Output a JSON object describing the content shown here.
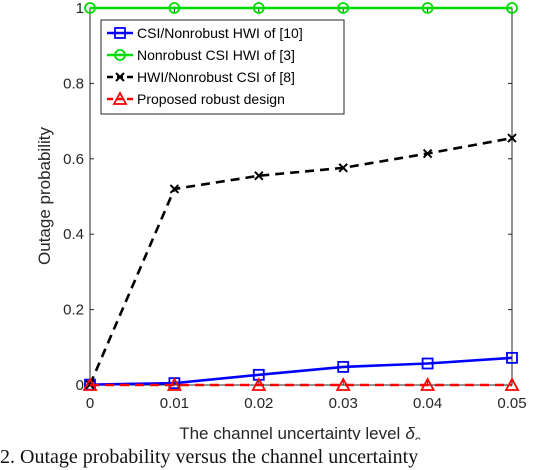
{
  "chart_data": {
    "type": "line",
    "xlabel": "The channel uncertainty level",
    "xlabel_symbol": "δ",
    "xlabel_subscript": "c",
    "ylabel": "Outage probability",
    "x": [
      0,
      0.01,
      0.02,
      0.03,
      0.04,
      0.05
    ],
    "xticks": [
      "0",
      "0.01",
      "0.02",
      "0.03",
      "0.04",
      "0.05"
    ],
    "yticks": [
      "0",
      "0.2",
      "0.4",
      "0.6",
      "0.8",
      "1"
    ],
    "xlim": [
      0,
      0.05
    ],
    "ylim": [
      0,
      1
    ],
    "grid": false,
    "legend_position": "top-left",
    "series": [
      {
        "name": "CSI/Nonrobust HWI of [10]",
        "color": "#0000ff",
        "style": "solid",
        "marker": "square",
        "values": [
          0.001,
          0.005,
          0.027,
          0.048,
          0.057,
          0.072
        ]
      },
      {
        "name": "Nonrobust CSI HWI of [3]",
        "color": "#00dd00",
        "style": "solid",
        "marker": "circle",
        "values": [
          1,
          1,
          1,
          1,
          1,
          1
        ]
      },
      {
        "name": "HWI/Nonrobust CSI of [8]",
        "color": "#000000",
        "style": "dashed",
        "marker": "x",
        "values": [
          0.001,
          0.52,
          0.555,
          0.576,
          0.614,
          0.655
        ]
      },
      {
        "name": "Proposed robust design",
        "color": "#ff0000",
        "style": "dashed",
        "marker": "triangle",
        "values": [
          0,
          0,
          0,
          0,
          0,
          0
        ]
      }
    ]
  },
  "caption": "2. Outage probability versus the channel uncertainty"
}
